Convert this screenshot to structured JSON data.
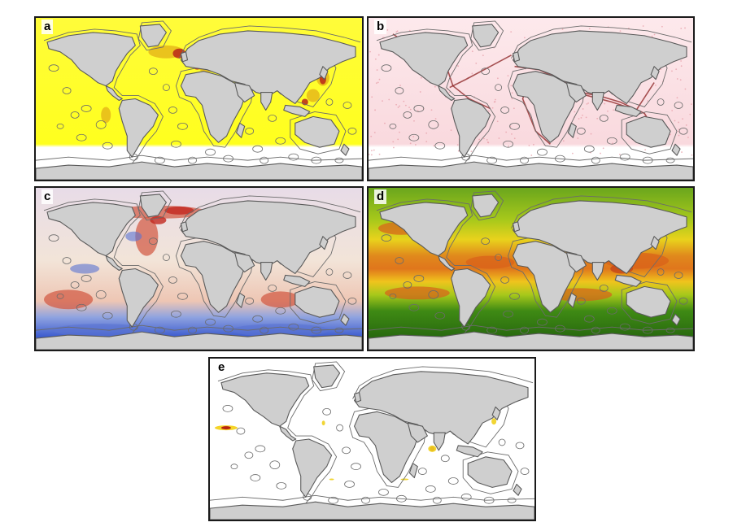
{
  "figure": {
    "panels": [
      {
        "label": "a",
        "theme": "yellow-density",
        "ocean": "#ffff1e",
        "south_ocean": "#ffffff",
        "hot": "#b8261a"
      },
      {
        "label": "b",
        "theme": "pink-tracks",
        "ocean": "#fbe3e6",
        "south_ocean": "#ffffff",
        "hot": "#8a1f1f"
      },
      {
        "label": "c",
        "theme": "diverging",
        "ocean": "#f3e6dc",
        "south_ocean": "#3d5ccf",
        "hot": "#c2281f"
      },
      {
        "label": "d",
        "theme": "green-red",
        "ocean": "#4e9a1a",
        "south_ocean": "#1d5a0c",
        "hot": "#e0761c"
      },
      {
        "label": "e",
        "theme": "sparse",
        "ocean": "#ffffff",
        "south_ocean": "#ffffff",
        "hot": "#b51a10"
      }
    ],
    "colors": {
      "land": "#cfcfcf",
      "coast": "#5a5a5a",
      "contour": "#6b6b6b",
      "frame": "#1a1a1a"
    }
  }
}
